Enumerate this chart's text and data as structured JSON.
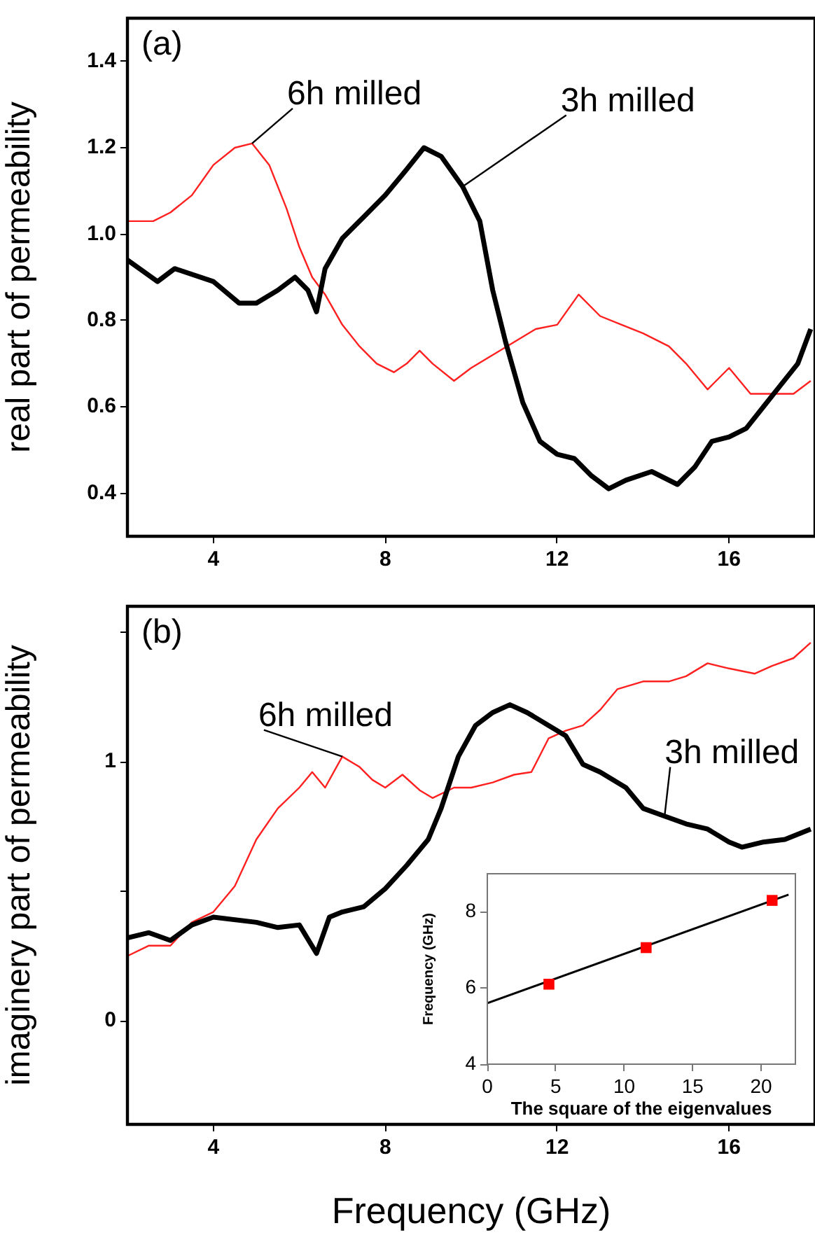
{
  "chart_data": [
    {
      "type": "line",
      "ylabel": "real part of permeability",
      "xlim": [
        2,
        18
      ],
      "xticks": [
        4,
        8,
        12,
        16
      ],
      "ylim": [
        0.3,
        1.5
      ],
      "yticks": [
        0.4,
        0.6,
        0.8,
        {
          "value": 1,
          "label": "1.0"
        },
        1.2,
        1.4
      ],
      "legend": false,
      "annotations": [
        "(a)"
      ],
      "series": [
        {
          "name": "3h milled",
          "color": "#000000",
          "x": [
            2,
            2.7,
            3.1,
            4,
            4.6,
            5,
            5.5,
            5.9,
            6.2,
            6.4,
            6.6,
            7,
            7.5,
            8,
            8.5,
            8.9,
            9.3,
            9.8,
            10.2,
            10.5,
            10.8,
            11.2,
            11.6,
            12,
            12.4,
            12.8,
            13.2,
            13.6,
            14.2,
            14.8,
            15.2,
            15.6,
            16,
            16.4,
            16.8,
            17.2,
            17.6,
            17.9
          ],
          "values": [
            0.94,
            0.89,
            0.92,
            0.89,
            0.84,
            0.84,
            0.87,
            0.9,
            0.87,
            0.82,
            0.92,
            0.99,
            1.04,
            1.09,
            1.15,
            1.2,
            1.18,
            1.11,
            1.03,
            0.87,
            0.75,
            0.61,
            0.52,
            0.49,
            0.48,
            0.44,
            0.41,
            0.43,
            0.45,
            0.42,
            0.46,
            0.52,
            0.53,
            0.55,
            0.6,
            0.65,
            0.7,
            0.78
          ]
        },
        {
          "name": "6h milled",
          "color": "#ff2020",
          "x": [
            2,
            2.6,
            3,
            3.5,
            4,
            4.5,
            4.9,
            5.3,
            5.7,
            6,
            6.3,
            6.6,
            7,
            7.4,
            7.8,
            8.2,
            8.5,
            8.8,
            9.1,
            9.6,
            10,
            10.5,
            11,
            11.5,
            12,
            12.5,
            13,
            13.5,
            14,
            14.6,
            15,
            15.5,
            16,
            16.5,
            17,
            17.5,
            17.9
          ],
          "values": [
            1.03,
            1.03,
            1.05,
            1.09,
            1.16,
            1.2,
            1.21,
            1.16,
            1.06,
            0.97,
            0.9,
            0.86,
            0.79,
            0.74,
            0.7,
            0.68,
            0.7,
            0.73,
            0.7,
            0.66,
            0.69,
            0.72,
            0.75,
            0.78,
            0.79,
            0.86,
            0.81,
            0.79,
            0.77,
            0.74,
            0.7,
            0.64,
            0.69,
            0.63,
            0.63,
            0.63,
            0.66
          ]
        }
      ]
    },
    {
      "type": "line",
      "xlabel": "Frequency (GHz)",
      "ylabel": "imaginery part of permeability",
      "xlim": [
        2,
        18
      ],
      "xticks": [
        4,
        8,
        12,
        16
      ],
      "ylim": [
        -0.4,
        1.6
      ],
      "yticks": [
        0,
        {
          "value": 0.5,
          "label": null
        },
        1,
        {
          "value": 1.5,
          "label": null
        }
      ],
      "legend": false,
      "annotations": [
        "(b)"
      ],
      "series": [
        {
          "name": "3h milled",
          "color": "#000000",
          "x": [
            2,
            2.5,
            3,
            3.5,
            4,
            5,
            5.5,
            6,
            6.4,
            6.7,
            7,
            7.5,
            8,
            8.5,
            9,
            9.3,
            9.7,
            10.1,
            10.5,
            10.9,
            11.3,
            11.8,
            12.2,
            12.6,
            13,
            13.6,
            14,
            14.5,
            15,
            15.5,
            16,
            16.3,
            16.8,
            17.3,
            17.9
          ],
          "values": [
            0.32,
            0.34,
            0.31,
            0.37,
            0.4,
            0.38,
            0.36,
            0.37,
            0.26,
            0.4,
            0.42,
            0.44,
            0.51,
            0.6,
            0.7,
            0.82,
            1.02,
            1.14,
            1.19,
            1.22,
            1.19,
            1.14,
            1.1,
            0.99,
            0.96,
            0.9,
            0.82,
            0.79,
            0.76,
            0.74,
            0.69,
            0.67,
            0.69,
            0.7,
            0.74
          ]
        },
        {
          "name": "6h milled",
          "color": "#ff2020",
          "x": [
            2,
            2.5,
            3,
            3.5,
            4,
            4.5,
            5,
            5.5,
            6,
            6.3,
            6.6,
            7,
            7.4,
            7.7,
            8,
            8.4,
            8.8,
            9.1,
            9.6,
            10,
            10.5,
            11,
            11.4,
            11.8,
            12.2,
            12.6,
            13,
            13.4,
            14,
            14.6,
            15,
            15.5,
            16,
            16.6,
            17,
            17.5,
            17.9
          ],
          "values": [
            0.25,
            0.29,
            0.29,
            0.38,
            0.42,
            0.52,
            0.7,
            0.82,
            0.9,
            0.96,
            0.9,
            1.02,
            0.98,
            0.93,
            0.9,
            0.95,
            0.89,
            0.86,
            0.9,
            0.9,
            0.92,
            0.95,
            0.96,
            1.09,
            1.12,
            1.14,
            1.2,
            1.28,
            1.31,
            1.31,
            1.33,
            1.38,
            1.36,
            1.34,
            1.37,
            1.4,
            1.46
          ]
        }
      ]
    },
    {
      "type": "scatter",
      "xlabel": "The square of the eigenvalues",
      "ylabel": "Frequency (GHz)",
      "xlim": [
        0,
        22.5
      ],
      "xticks": [
        0,
        5,
        10,
        15,
        20
      ],
      "ylim": [
        4,
        9
      ],
      "yticks": [
        4,
        6,
        8
      ],
      "legend": false,
      "series": [
        {
          "marker": "square",
          "color": "#ff0000",
          "x": [
            4.5,
            11.6,
            20.8
          ],
          "values": [
            6.1,
            7.06,
            8.3
          ]
        },
        {
          "type": "line",
          "color": "#000000",
          "x": [
            0,
            22
          ],
          "values": [
            5.6,
            8.45
          ]
        }
      ]
    }
  ]
}
